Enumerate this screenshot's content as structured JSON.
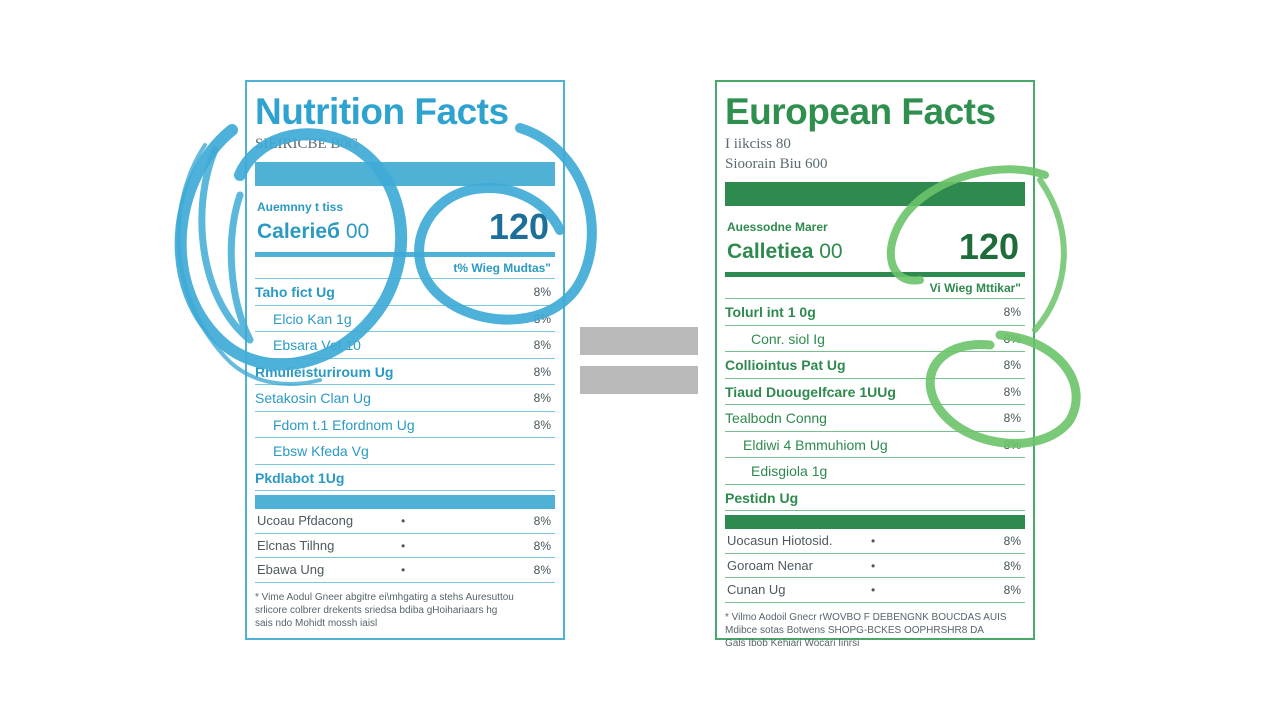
{
  "us_label": {
    "title": "Nutrition Facts",
    "serving_line_1": "",
    "serving_line_2": "SIEIRICBE B0G",
    "amount_label": "Auemnny t tiss",
    "calories_label": "Calerieб",
    "calories_small": "00",
    "calories_value": "120",
    "dv_header": "t% Wieg Mudtas\"",
    "rows": [
      {
        "name": "Taho fict  Ug",
        "pct": "8%"
      },
      {
        "name": "Elcio Kan  1g",
        "pct": "8%"
      },
      {
        "name": "Ebsara Vet  10",
        "pct": "8%"
      },
      {
        "name": "Rmulieisturiroum  Ug",
        "pct": "8%"
      },
      {
        "name": "Setakosin  Clan  Ug",
        "pct": "8%"
      },
      {
        "name": "Fdom t.1 Efordnom  Ug",
        "pct": "8%"
      },
      {
        "name": "Ebsw Kfeda  Vg",
        "pct": ""
      },
      {
        "name": "Pkdlabot  1Ug",
        "pct": ""
      }
    ],
    "vitamins": [
      {
        "name": "Ucoau Pfdacong",
        "dot": "•",
        "pct": "8%"
      },
      {
        "name": "Elcnas Tilhng",
        "dot": "•",
        "pct": "8%"
      },
      {
        "name": "Ebawa Ung",
        "dot": "•",
        "pct": "8%"
      }
    ],
    "footnote_1": "* Vime Aodul Gneer abgitre ei\\mhgatirg a stehs Auresuttou",
    "footnote_2": "srlicore colbrer drekents sriedsa bdiba gHoihariaars hg",
    "footnote_3": "sais ndo Mohidt mossh iaisl"
  },
  "eu_label": {
    "title": "European Facts",
    "serving_line_1": "I iikciss 80",
    "serving_line_2": "Sioorain Biu 600",
    "amount_label": "Auessodne Marer",
    "calories_label": "Calletiea",
    "calories_small": "00",
    "calories_value": "120",
    "dv_header": "Vi Wieg Mttikar\"",
    "rows": [
      {
        "name": "Tolurl int  1 0g",
        "pct": "8%"
      },
      {
        "name": "Conr. siol  Ig",
        "pct": "8%"
      },
      {
        "name": "Colliointus Pat  Ug",
        "pct": "8%"
      },
      {
        "name": "Tiaud Duougelfcare  1UUg",
        "pct": "8%"
      },
      {
        "name": "Tealbodn  Conng",
        "pct": "8%"
      },
      {
        "name": "Eldiwi 4 Bmmuhiom  Ug",
        "pct": "8%"
      },
      {
        "name": "Edisgiola  1g",
        "pct": ""
      },
      {
        "name": "Pestidn  Ug",
        "pct": ""
      }
    ],
    "vitamins": [
      {
        "name": "Uocasun Hiotosid.",
        "dot": "•",
        "pct": "8%"
      },
      {
        "name": "Goroam Nenar",
        "dot": "•",
        "pct": "8%"
      },
      {
        "name": "Cunan  Ug",
        "dot": "•",
        "pct": "8%"
      }
    ],
    "footnote_1": "* Vilmo Aodoil Gnecr rWOVBO F DEBENGNK BOUCDAS AUIS",
    "footnote_2": "Mdibce sotas Botwens SHOPG-BCKES OOPHRSHR8 DA",
    "footnote_3": "Gals Ibob Kehiari Wocari Iinrsi"
  },
  "colors": {
    "us_accent": "#4fb1d6",
    "eu_accent": "#2e8a4e",
    "equals_gray": "#b9b9b9"
  }
}
